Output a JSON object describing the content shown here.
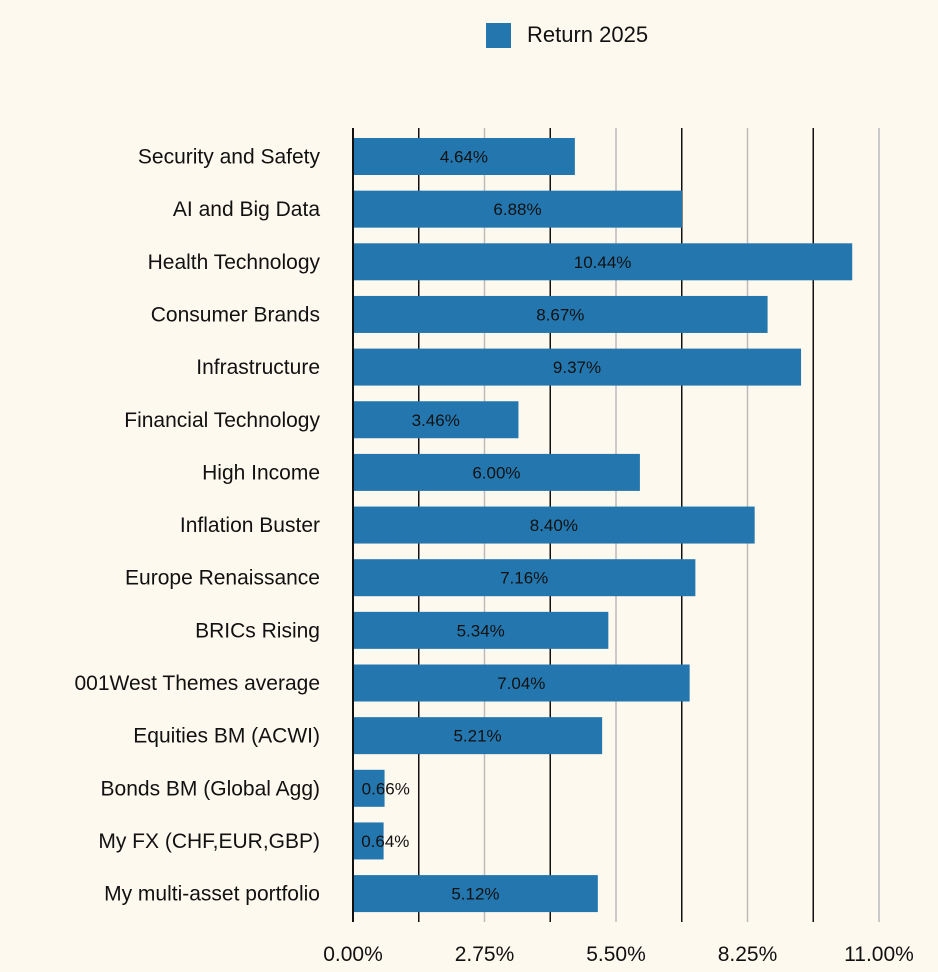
{
  "chart_data": {
    "type": "bar",
    "orientation": "horizontal",
    "title": "",
    "xlabel": "",
    "ylabel": "",
    "legend": {
      "entries": [
        "Return 2025"
      ],
      "placement": "top-center"
    },
    "categories": [
      "Security and Safety",
      "AI and Big Data",
      "Health Technology",
      "Consumer Brands",
      "Infrastructure",
      "Financial Technology",
      "High Income",
      "Inflation Buster",
      "Europe Renaissance",
      "BRICs Rising",
      "001West Themes average",
      "Equities BM (ACWI)",
      "Bonds BM (Global Agg)",
      "My FX (CHF,EUR,GBP)",
      "My multi-asset portfolio"
    ],
    "series": [
      {
        "name": "Return 2025",
        "values": [
          4.64,
          6.88,
          10.44,
          8.67,
          9.37,
          3.46,
          6.0,
          8.4,
          7.16,
          5.34,
          7.04,
          5.21,
          0.66,
          0.64,
          5.12
        ]
      }
    ],
    "data_labels": [
      "4.64%",
      "6.88%",
      "10.44%",
      "8.67%",
      "9.37%",
      "3.46%",
      "6.00%",
      "8.40%",
      "7.16%",
      "5.34%",
      "7.04%",
      "5.21%",
      "0.66%",
      "0.64%",
      "5.12%"
    ],
    "xlim": [
      0,
      11
    ],
    "xticks": [
      0,
      2.75,
      5.5,
      8.25,
      11
    ],
    "xtick_labels": [
      "0.00%",
      "2.75%",
      "5.50%",
      "8.25%",
      "11.00%"
    ],
    "minor_gridlines": [
      1.375,
      4.125,
      6.875,
      9.625
    ],
    "grid": true,
    "colors": {
      "bar": "#2477ae",
      "background": "#fef9ee",
      "major_grid": "#bbbbbb",
      "minor_grid": "#111111"
    }
  }
}
